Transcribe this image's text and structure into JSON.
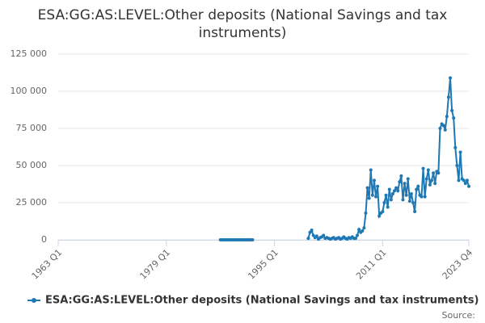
{
  "chart_data": {
    "type": "line",
    "title": "ESA:GG:AS:LEVEL:Other deposits (National Savings and tax instruments)",
    "source": "Source:",
    "categories": [
      "1963 Q1",
      null,
      null,
      null,
      null,
      null,
      null,
      null,
      null,
      null,
      null,
      null,
      null,
      null,
      null,
      null,
      null,
      null,
      null,
      null,
      null,
      null,
      null,
      null,
      null,
      null,
      null,
      null,
      null,
      null,
      null,
      null,
      null,
      null,
      null,
      null,
      null,
      null,
      null,
      null,
      null,
      null,
      null,
      null,
      null,
      null,
      null,
      null,
      null,
      null,
      null,
      null,
      null,
      null,
      null,
      null,
      null,
      null,
      null,
      null,
      null,
      null,
      null,
      null,
      "1979 Q1",
      null,
      null,
      null,
      null,
      null,
      null,
      null,
      null,
      null,
      null,
      null,
      null,
      null,
      null,
      null,
      null,
      null,
      null,
      null,
      null,
      null,
      null,
      null,
      null,
      null,
      null,
      null,
      null,
      null,
      null,
      null,
      null,
      null,
      null,
      null,
      null,
      null,
      null,
      null,
      null,
      null,
      null,
      null,
      null,
      null,
      null,
      null,
      null,
      null,
      null,
      null,
      null,
      null,
      null,
      null,
      null,
      null,
      null,
      null,
      null,
      null,
      null,
      null,
      "1995 Q1",
      null,
      null,
      null,
      null,
      null,
      null,
      null,
      null,
      null,
      null,
      null,
      null,
      null,
      null,
      null,
      null,
      null,
      null,
      null,
      null,
      null,
      null,
      null,
      null,
      null,
      null,
      null,
      null,
      null,
      null,
      null,
      null,
      null,
      null,
      null,
      null,
      null,
      null,
      null,
      null,
      null,
      null,
      null,
      null,
      null,
      null,
      null,
      null,
      null,
      null,
      null,
      null,
      null,
      null,
      null,
      null,
      null,
      null,
      null,
      null,
      null,
      null,
      null,
      "2011 Q1",
      null,
      null,
      null,
      null,
      null,
      null,
      null,
      null,
      null,
      null,
      null,
      null,
      null,
      null,
      null,
      null,
      null,
      null,
      null,
      null,
      null,
      null,
      null,
      null,
      null,
      null,
      null,
      null,
      null,
      null,
      null,
      null,
      null,
      null,
      null,
      null,
      null,
      null,
      null,
      null,
      null,
      null,
      null,
      null,
      null,
      null,
      null,
      null,
      null,
      null,
      "2023 Q4"
    ],
    "series": [
      {
        "name": "ESA:GG:AS:LEVEL:Other deposits (National Savings and tax instruments)",
        "color": "#1f78b4",
        "values": [
          null,
          null,
          null,
          null,
          null,
          null,
          null,
          null,
          null,
          null,
          null,
          null,
          null,
          null,
          null,
          null,
          null,
          null,
          null,
          null,
          null,
          null,
          null,
          null,
          null,
          null,
          null,
          null,
          null,
          null,
          null,
          null,
          null,
          null,
          null,
          null,
          null,
          null,
          null,
          null,
          null,
          null,
          null,
          null,
          null,
          null,
          null,
          null,
          null,
          null,
          null,
          null,
          null,
          null,
          null,
          null,
          null,
          null,
          null,
          null,
          null,
          null,
          null,
          null,
          null,
          null,
          null,
          null,
          null,
          null,
          null,
          null,
          null,
          null,
          null,
          null,
          null,
          null,
          null,
          null,
          null,
          null,
          null,
          null,
          null,
          null,
          null,
          null,
          null,
          null,
          null,
          null,
          null,
          null,
          null,
          null,
          0,
          0,
          0,
          0,
          0,
          0,
          0,
          0,
          0,
          0,
          0,
          0,
          0,
          0,
          0,
          0,
          0,
          0,
          0,
          0,
          null,
          null,
          null,
          null,
          null,
          null,
          null,
          null,
          null,
          null,
          null,
          null,
          null,
          null,
          null,
          null,
          null,
          null,
          null,
          null,
          null,
          null,
          null,
          null,
          null,
          null,
          null,
          null,
          null,
          null,
          null,
          null,
          1000,
          5000,
          6500,
          3000,
          1500,
          2500,
          500,
          1500,
          2000,
          3000,
          1000,
          1500,
          1000,
          500,
          1000,
          1500,
          500,
          1000,
          1500,
          500,
          1000,
          2000,
          1000,
          500,
          1500,
          1000,
          2000,
          1000,
          1000,
          3000,
          7000,
          5000,
          6000,
          8000,
          18000,
          35000,
          28000,
          47000,
          30000,
          40000,
          29000,
          36000,
          16000,
          18000,
          19000,
          25000,
          30000,
          22000,
          34000,
          27000,
          31000,
          33000,
          35000,
          33000,
          39000,
          43000,
          27000,
          38000,
          30000,
          41000,
          26000,
          31000,
          25000,
          19000,
          34000,
          36000,
          30000,
          29000,
          48000,
          29000,
          41000,
          47000,
          37000,
          40000,
          45000,
          38000,
          46000,
          45000,
          75000,
          78000,
          77000,
          74000,
          83000,
          96000,
          109000,
          87000,
          82000,
          62000,
          50000,
          40000,
          59000,
          41000,
          40000,
          38000,
          40000,
          36000
        ]
      }
    ],
    "ylim": [
      0,
      125000
    ],
    "yticks": [
      0,
      {
        "value": 25000,
        "label": "25 000"
      },
      {
        "value": 50000,
        "label": "50 000"
      },
      {
        "value": 75000,
        "label": "75 000"
      },
      {
        "value": 100000,
        "label": "100 000"
      },
      {
        "value": 125000,
        "label": "125 000"
      }
    ],
    "grid": true
  }
}
